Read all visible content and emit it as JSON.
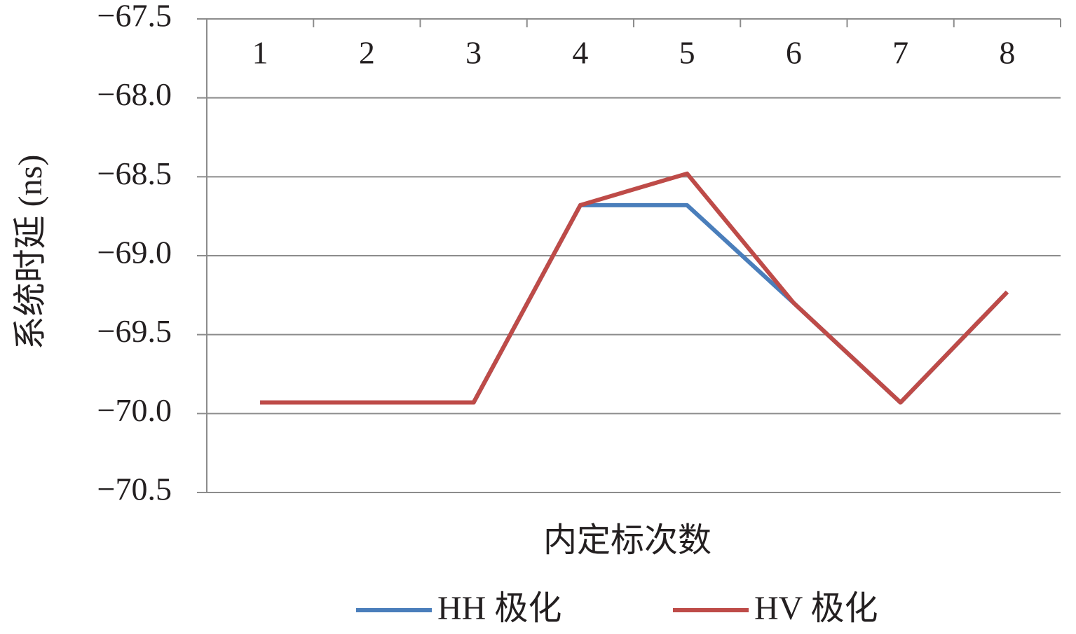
{
  "chart_data": {
    "type": "line",
    "x_label": "内定标次数",
    "y_label": "系统时延 (ns)",
    "categories": [
      "1",
      "2",
      "3",
      "4",
      "5",
      "6",
      "7",
      "8"
    ],
    "series": [
      {
        "name": "HH 极化",
        "color": "#4a7ebb",
        "values": [
          -69.93,
          -69.93,
          -69.93,
          -68.68,
          -68.68,
          -69.3,
          -69.93,
          -69.23
        ]
      },
      {
        "name": "HV 极化",
        "color": "#be4b48",
        "values": [
          -69.93,
          -69.93,
          -69.93,
          -68.68,
          -68.48,
          -69.3,
          -69.93,
          -69.23
        ]
      }
    ],
    "ylim": [
      -70.5,
      -67.5
    ],
    "yticks": [
      {
        "value": -67.5,
        "label": "−67.5"
      },
      {
        "value": -68.0,
        "label": "−68.0"
      },
      {
        "value": -68.5,
        "label": "−68.5"
      },
      {
        "value": -69.0,
        "label": "−69.0"
      },
      {
        "value": -69.5,
        "label": "−69.5"
      },
      {
        "value": -70.0,
        "label": "−70.0"
      },
      {
        "value": -70.5,
        "label": "−70.5"
      }
    ],
    "grid": true
  }
}
